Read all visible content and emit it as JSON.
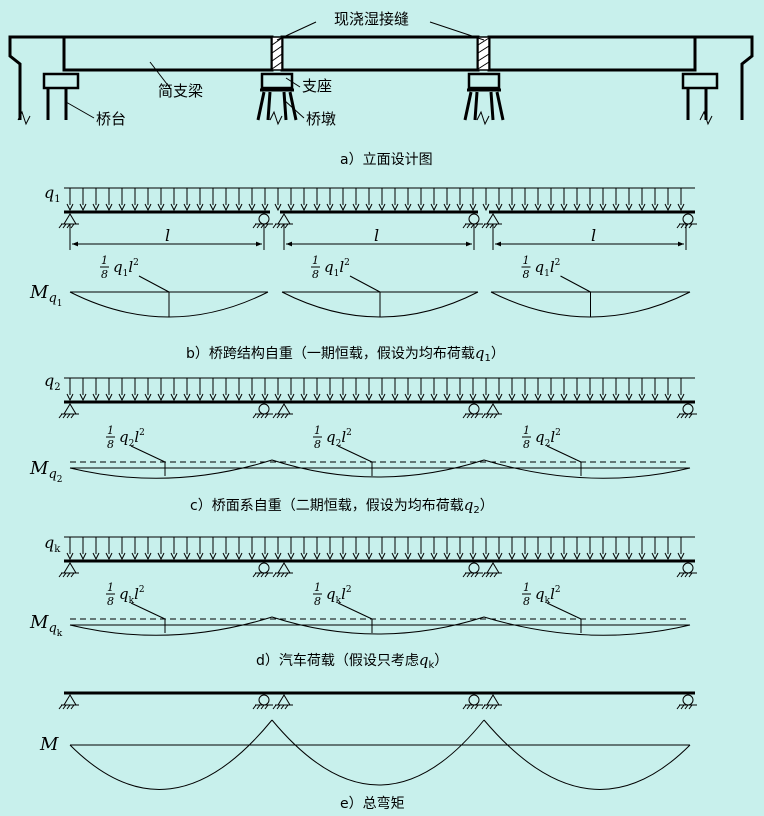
{
  "elevation": {
    "wet_joint": "现浇湿接缝",
    "simple_beam": "简支梁",
    "bearing": "支座",
    "abutment": "桥台",
    "pier": "桥墩",
    "caption": "a）立面设计图"
  },
  "span_symbol": "l",
  "panels": {
    "b": {
      "load_sym": "q",
      "load_sub": "1",
      "moment_sym": "M",
      "frac_num": "1",
      "frac_den": "8",
      "caption": "b）桥跨结构自重（一期恒载，假设为均布荷载",
      "cap_sym": "q",
      "cap_sub": "1",
      "cap_end": "）"
    },
    "c": {
      "load_sym": "q",
      "load_sub": "2",
      "moment_sym": "M",
      "frac_num": "1",
      "frac_den": "8",
      "caption": "c）桥面系自重（二期恒载，假设为均布荷载",
      "cap_sym": "q",
      "cap_sub": "2",
      "cap_end": "）"
    },
    "d": {
      "load_sym": "q",
      "load_sub": "k",
      "moment_sym": "M",
      "frac_num": "1",
      "frac_den": "8",
      "caption": "d）汽车荷载（假设只考虑",
      "cap_sym": "q",
      "cap_sub": "k",
      "cap_end": "）"
    },
    "e": {
      "moment_sym": "M",
      "caption": "e）总弯矩"
    }
  },
  "exponent": "2"
}
